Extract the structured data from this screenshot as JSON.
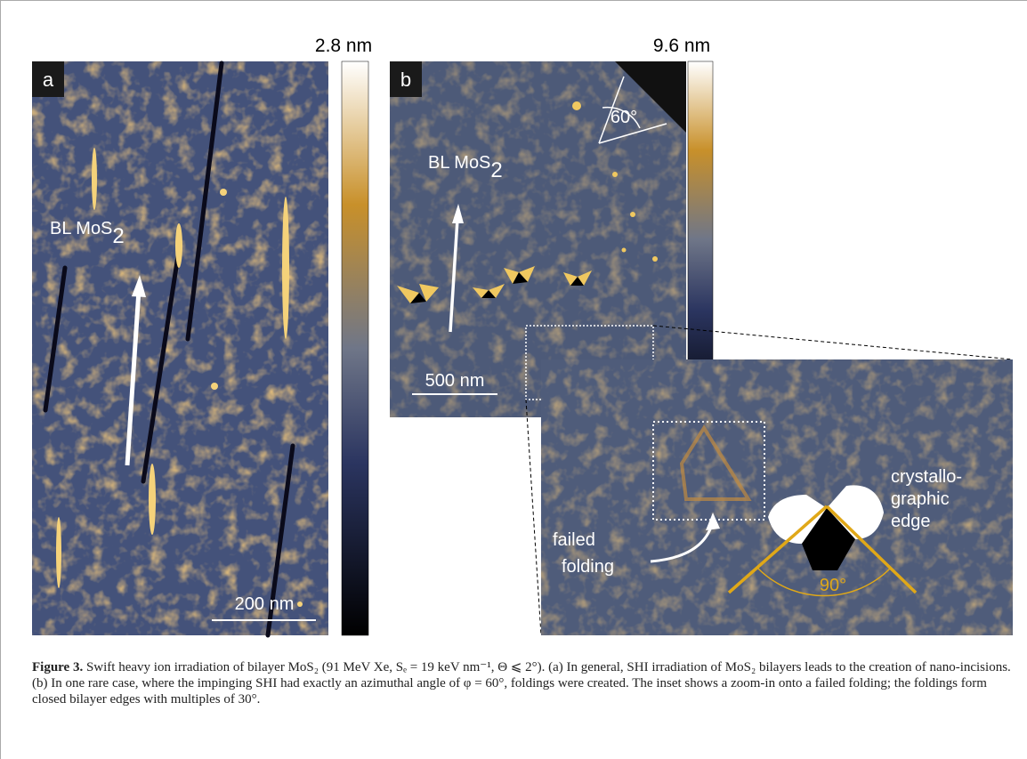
{
  "panel_a": {
    "label": "a",
    "colorbar_max": "2.8 nm",
    "material": "BL MoS",
    "material_sub": "2",
    "scale_bar": "200 nm"
  },
  "panel_b": {
    "label": "b",
    "colorbar_max": "9.6 nm",
    "material": "BL MoS",
    "material_sub": "2",
    "scale_bar": "500 nm",
    "angle": "60°"
  },
  "inset": {
    "failed_label": [
      "failed",
      "folding"
    ],
    "edge_label": [
      "crystallo-",
      "graphic",
      "edge"
    ],
    "angle": "90°"
  },
  "caption": {
    "label": "Figure 3.",
    "text": "Swift heavy ion irradiation of bilayer MoS₂ (91 MeV Xe, Sₑ = 19 keV nm⁻¹, Θ ⩽ 2°). (a) In general, SHI irradiation of MoS₂ bilayers leads to the creation of nano-incisions. (b) In one rare case, where the impinging SHI had exactly an azimuthal angle of φ = 60°, foldings were created. The inset shows a zoom-in onto a failed folding; the foldings form closed bilayer edges with multiples of 30°."
  }
}
